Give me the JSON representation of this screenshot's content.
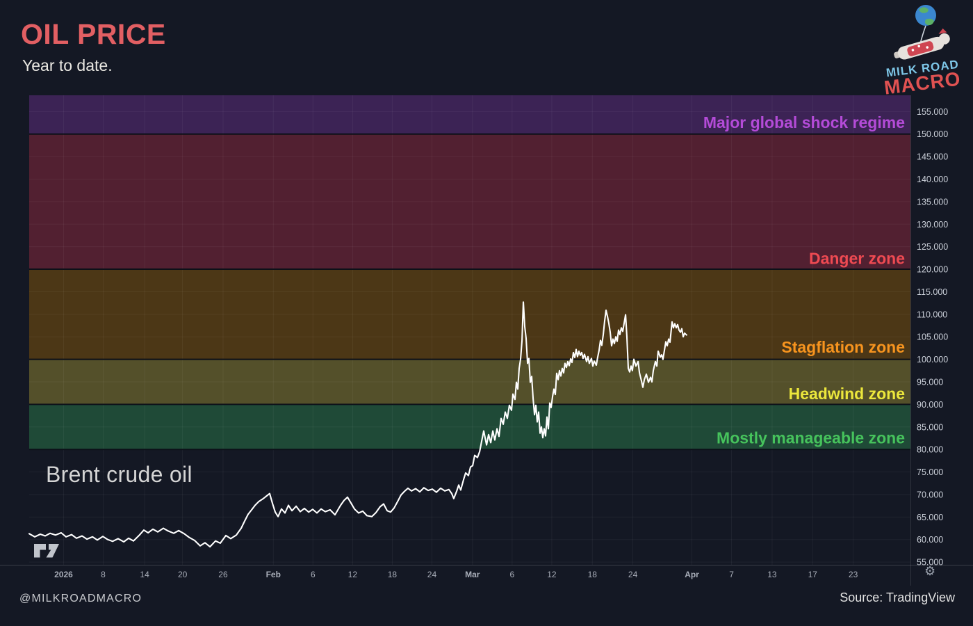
{
  "header": {
    "title": "OIL PRICE",
    "subtitle": "Year to date."
  },
  "logo": {
    "line1": "MILK ROAD",
    "line2": "MACRO"
  },
  "footer": {
    "handle": "@MILKROADMACRO",
    "source": "Source: TradingView"
  },
  "icons": {
    "gear": "⚙",
    "tradingview": "tv-mark",
    "globe_balloon": "globe-balloon"
  },
  "colors": {
    "background": "#141824",
    "grid": "rgba(255,255,255,0.05)",
    "zone_divider": "#0d1119",
    "axis_line": "rgba(255,255,255,0.16)",
    "separator": "rgba(255,255,255,0.12)",
    "y_tick_text": "#ccd1da",
    "x_tick_text": "#a9aeb9",
    "price_line": "#ffffff",
    "title": "#e25f63",
    "logo_blue": "#7ec7e8",
    "logo_red": "#e05252"
  },
  "chart_data": {
    "type": "line",
    "title": "Brent crude oil",
    "y_axis": {
      "min": 54.4,
      "max": 158.6,
      "tick_start": 55,
      "tick_end": 155,
      "tick_step": 5,
      "tick_decimals": 3
    },
    "x_ticks": [
      {
        "label": "2026",
        "f": 0.039
      },
      {
        "label": "8",
        "f": 0.084
      },
      {
        "label": "14",
        "f": 0.131
      },
      {
        "label": "20",
        "f": 0.174
      },
      {
        "label": "26",
        "f": 0.22
      },
      {
        "label": "Feb",
        "f": 0.277
      },
      {
        "label": "6",
        "f": 0.322
      },
      {
        "label": "12",
        "f": 0.367
      },
      {
        "label": "18",
        "f": 0.412
      },
      {
        "label": "24",
        "f": 0.457
      },
      {
        "label": "Mar",
        "f": 0.503
      },
      {
        "label": "6",
        "f": 0.548
      },
      {
        "label": "12",
        "f": 0.593
      },
      {
        "label": "18",
        "f": 0.639
      },
      {
        "label": "24",
        "f": 0.685
      },
      {
        "label": "Apr",
        "f": 0.752
      },
      {
        "label": "7",
        "f": 0.797
      },
      {
        "label": "13",
        "f": 0.843
      },
      {
        "label": "17",
        "f": 0.889
      },
      {
        "label": "23",
        "f": 0.935
      }
    ],
    "zones": [
      {
        "label": "Major global shock regime",
        "from": 150,
        "to": 158.6,
        "fill": "#3c2355",
        "text": "#b44bd8",
        "label_at": 152.6
      },
      {
        "label": "Danger zone",
        "from": 120,
        "to": 150,
        "fill": "#522031",
        "text": "#ef4a52",
        "label_at": 122.4
      },
      {
        "label": "Stagflation zone",
        "from": 100,
        "to": 120,
        "fill": "#4c3716",
        "text": "#f7941e",
        "label_at": 102.7
      },
      {
        "label": "Headwind zone",
        "from": 90,
        "to": 100,
        "fill": "#54502a",
        "text": "#ece73c",
        "label_at": 92.4
      },
      {
        "label": "Mostly manageable zone",
        "from": 80,
        "to": 90,
        "fill": "#1f4a37",
        "text": "#46c35c",
        "label_at": 82.6
      }
    ],
    "series": [
      {
        "name": "Brent crude oil",
        "color": "#ffffff",
        "points": [
          [
            0.0,
            61.3
          ],
          [
            0.0063,
            60.6
          ],
          [
            0.0126,
            61.2
          ],
          [
            0.0181,
            60.8
          ],
          [
            0.0237,
            61.4
          ],
          [
            0.03,
            61.0
          ],
          [
            0.0363,
            61.5
          ],
          [
            0.0418,
            60.6
          ],
          [
            0.0481,
            61.1
          ],
          [
            0.0536,
            60.3
          ],
          [
            0.0599,
            60.8
          ],
          [
            0.0655,
            60.1
          ],
          [
            0.0718,
            60.6
          ],
          [
            0.0773,
            59.9
          ],
          [
            0.0836,
            60.7
          ],
          [
            0.0891,
            60.0
          ],
          [
            0.0946,
            59.6
          ],
          [
            0.1009,
            60.2
          ],
          [
            0.1073,
            59.5
          ],
          [
            0.1128,
            60.3
          ],
          [
            0.1183,
            59.7
          ],
          [
            0.1246,
            60.9
          ],
          [
            0.1301,
            62.1
          ],
          [
            0.1349,
            61.5
          ],
          [
            0.1404,
            62.3
          ],
          [
            0.1459,
            61.7
          ],
          [
            0.1522,
            62.5
          ],
          [
            0.1577,
            61.9
          ],
          [
            0.164,
            61.4
          ],
          [
            0.1696,
            62.0
          ],
          [
            0.1759,
            61.3
          ],
          [
            0.1814,
            60.5
          ],
          [
            0.1877,
            59.8
          ],
          [
            0.194,
            58.6
          ],
          [
            0.1995,
            59.3
          ],
          [
            0.2051,
            58.4
          ],
          [
            0.2114,
            59.7
          ],
          [
            0.2169,
            59.2
          ],
          [
            0.2232,
            60.9
          ],
          [
            0.2287,
            60.2
          ],
          [
            0.235,
            61.0
          ],
          [
            0.2405,
            62.5
          ],
          [
            0.2445,
            64.1
          ],
          [
            0.2484,
            65.6
          ],
          [
            0.2524,
            66.6
          ],
          [
            0.2563,
            67.6
          ],
          [
            0.2603,
            68.4
          ],
          [
            0.265,
            69.0
          ],
          [
            0.2689,
            69.6
          ],
          [
            0.2729,
            70.2
          ],
          [
            0.2761,
            68.0
          ],
          [
            0.2792,
            66.1
          ],
          [
            0.2824,
            65.1
          ],
          [
            0.2863,
            66.8
          ],
          [
            0.2903,
            65.9
          ],
          [
            0.2942,
            67.6
          ],
          [
            0.2982,
            66.4
          ],
          [
            0.3029,
            67.4
          ],
          [
            0.3076,
            66.2
          ],
          [
            0.3123,
            66.9
          ],
          [
            0.3171,
            66.1
          ],
          [
            0.3218,
            66.7
          ],
          [
            0.3265,
            65.9
          ],
          [
            0.3312,
            66.8
          ],
          [
            0.336,
            66.2
          ],
          [
            0.3415,
            66.6
          ],
          [
            0.347,
            65.5
          ],
          [
            0.3533,
            67.6
          ],
          [
            0.3573,
            68.7
          ],
          [
            0.3612,
            69.4
          ],
          [
            0.3652,
            68.1
          ],
          [
            0.3691,
            66.8
          ],
          [
            0.3738,
            65.9
          ],
          [
            0.3785,
            66.3
          ],
          [
            0.3833,
            65.3
          ],
          [
            0.3888,
            65.1
          ],
          [
            0.3935,
            66.0
          ],
          [
            0.3983,
            67.3
          ],
          [
            0.4022,
            67.9
          ],
          [
            0.4062,
            66.4
          ],
          [
            0.4101,
            66.1
          ],
          [
            0.414,
            67.0
          ],
          [
            0.418,
            68.4
          ],
          [
            0.4219,
            69.9
          ],
          [
            0.4259,
            70.7
          ],
          [
            0.4298,
            71.4
          ],
          [
            0.4338,
            70.8
          ],
          [
            0.4385,
            71.3
          ],
          [
            0.4432,
            70.6
          ],
          [
            0.4479,
            71.5
          ],
          [
            0.4527,
            70.9
          ],
          [
            0.4574,
            71.2
          ],
          [
            0.4621,
            70.5
          ],
          [
            0.4669,
            71.4
          ],
          [
            0.4716,
            70.8
          ],
          [
            0.4763,
            71.1
          ],
          [
            0.4795,
            70.2
          ],
          [
            0.4818,
            69.1
          ],
          [
            0.485,
            70.7
          ],
          [
            0.4874,
            72.1
          ],
          [
            0.4897,
            71.0
          ],
          [
            0.4929,
            73.3
          ],
          [
            0.4953,
            74.8
          ],
          [
            0.4984,
            74.2
          ],
          [
            0.5008,
            76.1
          ],
          [
            0.5032,
            76.4
          ],
          [
            0.5055,
            78.7
          ],
          [
            0.5087,
            78.2
          ],
          [
            0.5111,
            79.5
          ],
          [
            0.5134,
            81.8
          ],
          [
            0.5158,
            84.1
          ],
          [
            0.519,
            81.0
          ],
          [
            0.5213,
            83.3
          ],
          [
            0.5237,
            81.5
          ],
          [
            0.5261,
            84.1
          ],
          [
            0.5284,
            82.1
          ],
          [
            0.5308,
            84.6
          ],
          [
            0.5331,
            82.9
          ],
          [
            0.5355,
            86.9
          ],
          [
            0.5379,
            85.6
          ],
          [
            0.5402,
            88.3
          ],
          [
            0.5426,
            86.9
          ],
          [
            0.5449,
            89.8
          ],
          [
            0.5473,
            88.7
          ],
          [
            0.5489,
            92.3
          ],
          [
            0.5513,
            91.1
          ],
          [
            0.5528,
            94.9
          ],
          [
            0.5544,
            93.4
          ],
          [
            0.556,
            98.0
          ],
          [
            0.5576,
            100.0
          ],
          [
            0.5592,
            104.2
          ],
          [
            0.56,
            108.8
          ],
          [
            0.5607,
            112.7
          ],
          [
            0.5623,
            107.3
          ],
          [
            0.5639,
            104.6
          ],
          [
            0.5655,
            99.1
          ],
          [
            0.567,
            100.2
          ],
          [
            0.5686,
            94.9
          ],
          [
            0.5702,
            96.2
          ],
          [
            0.5718,
            91.4
          ],
          [
            0.5734,
            87.7
          ],
          [
            0.5749,
            89.8
          ],
          [
            0.5765,
            86.1
          ],
          [
            0.5781,
            88.3
          ],
          [
            0.5797,
            83.6
          ],
          [
            0.5812,
            85.0
          ],
          [
            0.5828,
            82.6
          ],
          [
            0.5844,
            84.6
          ],
          [
            0.586,
            83.0
          ],
          [
            0.5875,
            87.2
          ],
          [
            0.5891,
            84.6
          ],
          [
            0.5907,
            90.3
          ],
          [
            0.5923,
            89.3
          ],
          [
            0.5939,
            91.8
          ],
          [
            0.5954,
            93.4
          ],
          [
            0.597,
            92.2
          ],
          [
            0.5986,
            96.9
          ],
          [
            0.6002,
            95.5
          ],
          [
            0.6017,
            97.5
          ],
          [
            0.6033,
            96.3
          ],
          [
            0.6049,
            98.0
          ],
          [
            0.6065,
            97.0
          ],
          [
            0.608,
            99.1
          ],
          [
            0.6096,
            98.2
          ],
          [
            0.6112,
            99.5
          ],
          [
            0.6128,
            98.6
          ],
          [
            0.6144,
            100.1
          ],
          [
            0.6159,
            99.3
          ],
          [
            0.6175,
            101.5
          ],
          [
            0.6191,
            100.4
          ],
          [
            0.6207,
            102.2
          ],
          [
            0.6222,
            100.6
          ],
          [
            0.6238,
            101.8
          ],
          [
            0.6254,
            100.9
          ],
          [
            0.627,
            101.5
          ],
          [
            0.6285,
            100.2
          ],
          [
            0.6301,
            101.1
          ],
          [
            0.6325,
            99.5
          ],
          [
            0.6341,
            100.6
          ],
          [
            0.6356,
            99.1
          ],
          [
            0.638,
            100.2
          ],
          [
            0.6396,
            98.5
          ],
          [
            0.6412,
            99.6
          ],
          [
            0.6435,
            98.7
          ],
          [
            0.6451,
            100.5
          ],
          [
            0.6467,
            102.0
          ],
          [
            0.6483,
            104.2
          ],
          [
            0.6498,
            103.1
          ],
          [
            0.6514,
            105.5
          ],
          [
            0.653,
            108.5
          ],
          [
            0.6546,
            110.9
          ],
          [
            0.6562,
            109.5
          ],
          [
            0.6577,
            108.0
          ],
          [
            0.6593,
            106.0
          ],
          [
            0.6609,
            103.0
          ],
          [
            0.6625,
            104.5
          ],
          [
            0.664,
            103.5
          ],
          [
            0.6656,
            105.0
          ],
          [
            0.6672,
            104.0
          ],
          [
            0.6688,
            106.5
          ],
          [
            0.6703,
            105.5
          ],
          [
            0.6719,
            107.0
          ],
          [
            0.6735,
            106.2
          ],
          [
            0.6751,
            108.0
          ],
          [
            0.6767,
            109.9
          ],
          [
            0.6782,
            105.0
          ],
          [
            0.6798,
            98.0
          ],
          [
            0.6814,
            97.2
          ],
          [
            0.683,
            98.5
          ],
          [
            0.6845,
            97.5
          ],
          [
            0.6861,
            100.0
          ],
          [
            0.6885,
            98.5
          ],
          [
            0.6909,
            99.5
          ],
          [
            0.6925,
            97.0
          ],
          [
            0.6948,
            95.2
          ],
          [
            0.6964,
            93.8
          ],
          [
            0.698,
            95.5
          ],
          [
            0.7003,
            96.7
          ],
          [
            0.7027,
            94.9
          ],
          [
            0.7051,
            96.0
          ],
          [
            0.7066,
            95.0
          ],
          [
            0.7082,
            97.5
          ],
          [
            0.7106,
            99.5
          ],
          [
            0.7122,
            98.5
          ],
          [
            0.7137,
            101.8
          ],
          [
            0.7161,
            100.5
          ],
          [
            0.7177,
            101.0
          ],
          [
            0.7192,
            100.0
          ],
          [
            0.7208,
            102.0
          ],
          [
            0.7224,
            103.9
          ],
          [
            0.724,
            103.0
          ],
          [
            0.7256,
            104.5
          ],
          [
            0.7271,
            103.8
          ],
          [
            0.7295,
            108.3
          ],
          [
            0.7311,
            107.0
          ],
          [
            0.7326,
            107.9
          ],
          [
            0.7342,
            107.0
          ],
          [
            0.7358,
            107.7
          ],
          [
            0.7374,
            106.5
          ],
          [
            0.739,
            106.0
          ],
          [
            0.7405,
            106.8
          ],
          [
            0.7421,
            105.0
          ],
          [
            0.7437,
            105.8
          ],
          [
            0.746,
            105.4
          ]
        ]
      }
    ]
  }
}
